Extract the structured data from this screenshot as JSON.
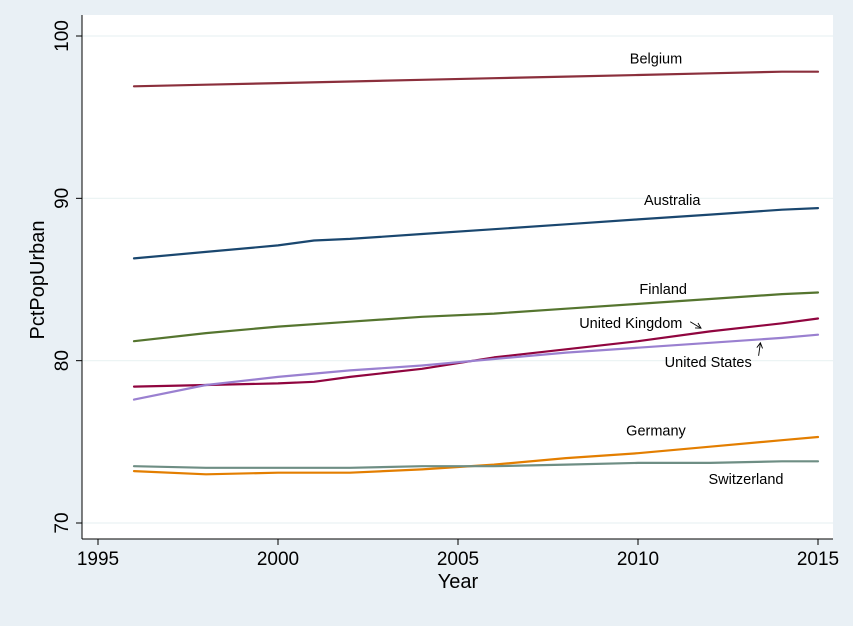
{
  "chart_data": {
    "type": "line",
    "xlabel": "Year",
    "ylabel": "PctPopUrban",
    "xlim": [
      1995,
      2015
    ],
    "ylim": [
      70,
      100
    ],
    "x_ticks": [
      "1995",
      "2000",
      "2005",
      "2010",
      "2015"
    ],
    "y_ticks": [
      "70",
      "80",
      "90",
      "100"
    ],
    "grid": "horizontal",
    "background": "#e9f0f5",
    "plot_background": "#ffffff",
    "series": [
      {
        "name": "Belgium",
        "color": "#8b2f3c",
        "x": [
          1996,
          1998,
          2000,
          2002,
          2004,
          2006,
          2008,
          2010,
          2012,
          2014,
          2015
        ],
        "y": [
          96.9,
          97.0,
          97.1,
          97.2,
          97.3,
          97.4,
          97.5,
          97.6,
          97.7,
          97.8,
          97.8
        ]
      },
      {
        "name": "Australia",
        "color": "#1a476f",
        "x": [
          1996,
          1998,
          2000,
          2001,
          2002,
          2004,
          2006,
          2008,
          2010,
          2012,
          2014,
          2015
        ],
        "y": [
          86.3,
          86.7,
          87.1,
          87.4,
          87.5,
          87.8,
          88.1,
          88.4,
          88.7,
          89.0,
          89.3,
          89.4
        ]
      },
      {
        "name": "Finland",
        "color": "#55752f",
        "x": [
          1996,
          1998,
          2000,
          2002,
          2004,
          2006,
          2008,
          2010,
          2012,
          2014,
          2015
        ],
        "y": [
          81.2,
          81.7,
          82.1,
          82.4,
          82.7,
          82.9,
          83.2,
          83.5,
          83.8,
          84.1,
          84.2
        ]
      },
      {
        "name": "United Kingdom",
        "color": "#90053f",
        "x": [
          1996,
          1998,
          2000,
          2001,
          2002,
          2004,
          2006,
          2008,
          2010,
          2012,
          2014,
          2015
        ],
        "y": [
          78.4,
          78.5,
          78.6,
          78.7,
          79.0,
          79.5,
          80.2,
          80.7,
          81.2,
          81.8,
          82.3,
          82.6
        ]
      },
      {
        "name": "United States",
        "color": "#9a80d0",
        "x": [
          1996,
          1998,
          2000,
          2002,
          2004,
          2006,
          2008,
          2010,
          2012,
          2014,
          2015
        ],
        "y": [
          77.6,
          78.5,
          79.0,
          79.4,
          79.7,
          80.1,
          80.5,
          80.8,
          81.1,
          81.4,
          81.6
        ]
      },
      {
        "name": "Germany",
        "color": "#e37e00",
        "x": [
          1996,
          1998,
          2000,
          2002,
          2004,
          2006,
          2008,
          2010,
          2012,
          2014,
          2015
        ],
        "y": [
          73.2,
          73.0,
          73.1,
          73.1,
          73.3,
          73.6,
          74.0,
          74.3,
          74.7,
          75.1,
          75.3
        ]
      },
      {
        "name": "Switzerland",
        "color": "#6e8e84",
        "x": [
          1996,
          1998,
          2000,
          2002,
          2004,
          2006,
          2008,
          2010,
          2012,
          2014,
          2015
        ],
        "y": [
          73.5,
          73.4,
          73.4,
          73.4,
          73.5,
          73.5,
          73.6,
          73.7,
          73.7,
          73.8,
          73.8
        ]
      }
    ],
    "annotations": [
      {
        "text": "Belgium",
        "x": 2010.5,
        "y": 98.3,
        "align": "middle"
      },
      {
        "text": "Australia",
        "x": 2010.95,
        "y": 89.6,
        "align": "middle"
      },
      {
        "text": "Finland",
        "x": 2010.7,
        "y": 84.1,
        "align": "middle"
      },
      {
        "text": "United Kingdom",
        "x": 2009.8,
        "y": 82.0,
        "align": "middle"
      },
      {
        "text": "United States",
        "x": 2011.95,
        "y": 79.6,
        "align": "middle"
      },
      {
        "text": "Germany",
        "x": 2010.5,
        "y": 75.4,
        "align": "middle"
      },
      {
        "text": "Switzerland",
        "x": 2013.0,
        "y": 72.4,
        "align": "middle"
      }
    ],
    "pointers": [
      {
        "name": "United Kingdom",
        "from": [
          2011.45,
          82.4
        ],
        "to": [
          2011.75,
          82.0
        ]
      },
      {
        "name": "United States",
        "from": [
          2013.35,
          80.3
        ],
        "to": [
          2013.4,
          81.1
        ]
      }
    ]
  }
}
